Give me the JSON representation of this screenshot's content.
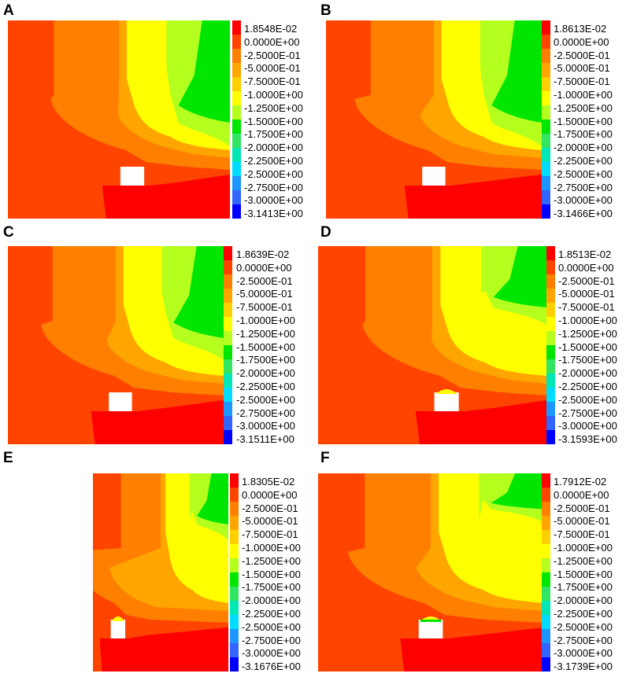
{
  "panels": [
    {
      "letter": "A",
      "max_label": "1.8548E-02",
      "min_label": "-3.1413E+00"
    },
    {
      "letter": "B",
      "max_label": "1.8613E-02",
      "min_label": "-3.1466E+00"
    },
    {
      "letter": "C",
      "max_label": "1.8639E-02",
      "min_label": "-3.1511E+00"
    },
    {
      "letter": "D",
      "max_label": "1.8513E-02",
      "min_label": "-3.1593E+00"
    },
    {
      "letter": "E",
      "max_label": "1.8305E-02",
      "min_label": "-3.1676E+00"
    },
    {
      "letter": "F",
      "max_label": "1.7912E-02",
      "min_label": "-3.1739E+00"
    }
  ],
  "legend_levels": [
    "0.0000E+00",
    "-2.5000E-01",
    "-5.0000E-01",
    "-7.5000E-01",
    "-1.0000E+00",
    "-1.2500E+00",
    "-1.5000E+00",
    "-1.7500E+00",
    "-2.0000E+00",
    "-2.2500E+00",
    "-2.5000E+00",
    "-2.7500E+00",
    "-3.0000E+00"
  ],
  "legend_colors": [
    "#ff0000",
    "#ff4400",
    "#ff8000",
    "#ffa500",
    "#ffd000",
    "#ffff00",
    "#b4ff1e",
    "#00e600",
    "#32e664",
    "#00e6b4",
    "#00dcff",
    "#1e96ff",
    "#3264ff",
    "#0000ff"
  ]
}
